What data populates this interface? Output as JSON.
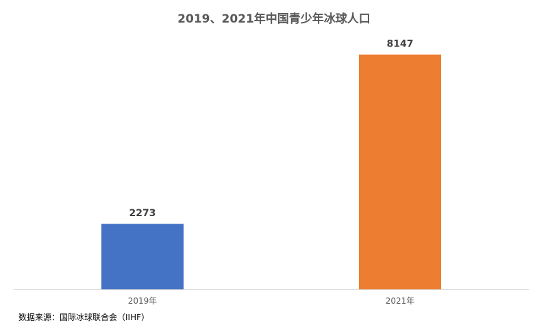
{
  "chart_data": {
    "type": "bar",
    "title": "2019、2021年中国青少年冰球人口",
    "categories": [
      "2019年",
      "2021年"
    ],
    "values": [
      2273,
      8147
    ],
    "data_labels": [
      "2273",
      "8147"
    ],
    "bar_colors": [
      "#4472C4",
      "#ED7D31"
    ],
    "xlabel": "",
    "ylabel": "",
    "ylim": [
      0,
      8900
    ],
    "grid": false,
    "legend": "none"
  },
  "source": "数据来源：国际冰球联合会（IIHF）",
  "colors": {
    "title": "#595959",
    "axis_line": "#D9D9D9",
    "tick_label": "#595959",
    "data_label": "#404040"
  }
}
